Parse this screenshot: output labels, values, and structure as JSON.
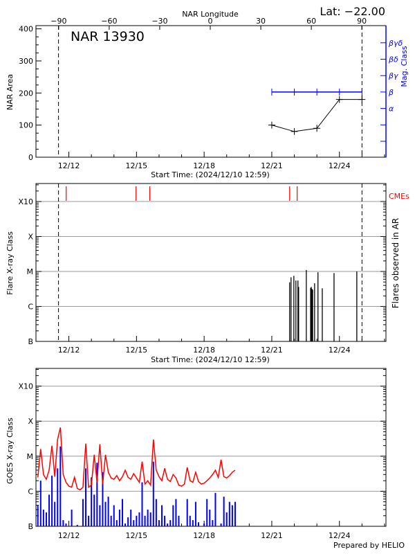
{
  "footer": "Prepared by HELIO",
  "colors": {
    "area": "#000000",
    "mag_class": "#0000ff",
    "cme": "#ff0000",
    "goes_long": "#ff0000",
    "goes_short": "#0000ff",
    "grid": "#999999"
  },
  "chart_data": [
    {
      "type": "line",
      "title": "NAR 13930",
      "corner_label": "Lat: −22.00",
      "top_axis_label": "NAR Longitude",
      "top_ticks": [
        "-90",
        "-60",
        "-30",
        "0",
        "30",
        "60",
        "90"
      ],
      "xlabel": "Start Time: (2024/12/10 12:59)",
      "x_ticks": [
        "12/12",
        "12/15",
        "12/18",
        "12/21",
        "12/24"
      ],
      "ylabel": "NAR Area",
      "ylim": [
        0,
        410
      ],
      "y_ticks": [
        "0",
        "100",
        "200",
        "300",
        "400"
      ],
      "y2label": "Mag. Class",
      "y2_ticks": [
        "",
        "",
        "α",
        "β",
        "βγ",
        "βδ",
        "βγδ"
      ],
      "limb_times": [
        "2024-12-11 13:00",
        "2024-12-25 00:00"
      ],
      "series": [
        {
          "x": [
            "2024-12-21 00:00",
            "2024-12-22 00:00",
            "2024-12-23 00:00",
            "2024-12-24 00:00",
            "2024-12-25 00:00"
          ],
          "area": [
            100,
            80,
            90,
            180,
            180
          ],
          "mag_class": [
            "β",
            "β",
            "β",
            "β",
            "β"
          ]
        }
      ]
    },
    {
      "type": "bar",
      "xlabel": "Start Time: (2024/12/10 12:59)",
      "x_ticks": [
        "12/12",
        "12/15",
        "12/18",
        "12/21",
        "12/24"
      ],
      "ylabel": "Flare X-ray Class",
      "y_ticks": [
        "B",
        "C",
        "M",
        "X",
        "X10"
      ],
      "y_scale": "log",
      "y2label": "Flares observed in AR",
      "cme_label": "CMEs",
      "grid": true,
      "cmes": [
        "2024-12-11 21:10",
        "2024-12-14 23:30",
        "2024-12-15 14:10",
        "2024-12-21 19:00",
        "2024-12-22 03:00"
      ],
      "flares": [
        {
          "t": "2024-12-21 19:00",
          "class": "C4.9"
        },
        {
          "t": "2024-12-21 20:30",
          "class": "C6.8"
        },
        {
          "t": "2024-12-21 23:30",
          "class": "C7.5"
        },
        {
          "t": "2024-12-22 01:40",
          "class": "C5.5"
        },
        {
          "t": "2024-12-22 03:50",
          "class": "C5.5"
        },
        {
          "t": "2024-12-22 04:35",
          "class": "C3.6"
        },
        {
          "t": "2024-12-22 12:45",
          "class": "M1.1"
        },
        {
          "t": "2024-12-22 17:20",
          "class": "C3.4"
        },
        {
          "t": "2024-12-22 18:00",
          "class": "C3.6"
        },
        {
          "t": "2024-12-22 18:40",
          "class": "C3.2"
        },
        {
          "t": "2024-12-22 19:30",
          "class": "C3.0"
        },
        {
          "t": "2024-12-22 21:35",
          "class": "C4.6"
        },
        {
          "t": "2024-12-23 01:10",
          "class": "C9.5"
        },
        {
          "t": "2024-12-23 05:45",
          "class": "C3.3"
        },
        {
          "t": "2024-12-23 18:15",
          "class": "C9.0"
        },
        {
          "t": "2024-12-24 18:30",
          "class": "M1.0"
        }
      ]
    },
    {
      "type": "line",
      "x_ticks": [
        "12/12",
        "12/15",
        "12/18",
        "12/21",
        "12/24"
      ],
      "ylabel": "GOES X-ray Class",
      "y_ticks": [
        "B",
        "C",
        "M",
        "X",
        "X10"
      ],
      "y_scale": "log",
      "grid": true,
      "x_start": "2024-12-10 15:00",
      "x_step_hours": 3,
      "series": [
        {
          "color": "#ff0000",
          "values": [
            2.5e-06,
            1.6e-05,
            3e-06,
            2.2e-06,
            4e-06,
            2e-05,
            2.6e-06,
            3e-05,
            6.6e-05,
            3e-06,
            1.8e-06,
            1.4e-06,
            1.3e-06,
            2.5e-06,
            1.2e-06,
            1.1e-06,
            1.3e-06,
            2.3e-05,
            1.3e-06,
            1.5e-06,
            1.1e-05,
            1.8e-06,
            2.2e-05,
            1.6e-06,
            1.1e-05,
            3.5e-06,
            2.4e-06,
            2.2e-06,
            2.8e-06,
            2e-06,
            2.6e-06,
            4e-06,
            2.5e-06,
            2.2e-06,
            3.2e-06,
            2.4e-06,
            1.8e-06,
            7e-06,
            1.6e-06,
            2e-06,
            1.5e-06,
            3e-05,
            4e-06,
            2.6e-06,
            2e-06,
            4.5e-06,
            2.2e-06,
            1.9e-06,
            3e-06,
            2.4e-06,
            1.5e-06,
            1.4e-06,
            1.6e-06,
            4.8e-06,
            2e-06,
            1.8e-06,
            3.5e-06,
            1.9e-06,
            1.6e-06,
            1.7e-06,
            2e-06,
            2.4e-06,
            3e-06,
            4e-06,
            2.5e-06,
            8e-06,
            2.6e-06,
            2.4e-06,
            2.8e-06,
            3.5e-06,
            4e-06
          ]
        },
        {
          "color": "#0000ff",
          "values": [
            4e-07,
            2e-06,
            3e-07,
            2.5e-07,
            8e-07,
            2.8e-06,
            5e-07,
            4.5e-06,
            1.9e-05,
            1.5e-07,
            1.2e-07,
            1e-07,
            3e-07,
            1e-07,
            1.1e-07,
            1e-07,
            6e-07,
            4.5e-06,
            2e-07,
            2.5e-06,
            8e-07,
            6.5e-06,
            4e-07,
            3.5e-06,
            5e-07,
            7e-07,
            2e-07,
            4e-07,
            1.5e-07,
            3e-07,
            6e-07,
            1.2e-07,
            1.8e-07,
            3e-07,
            1.5e-07,
            2e-07,
            2.5e-07,
            1.8e-06,
            2e-07,
            3e-07,
            2.5e-07,
            7e-06,
            6e-07,
            1.5e-07,
            4e-07,
            2e-07,
            1.2e-07,
            1.5e-07,
            4e-07,
            6e-07,
            2e-07,
            1e-07,
            1e-07,
            6e-07,
            2e-07,
            1.5e-07,
            5e-07,
            1.3e-07,
            1e-07,
            1.2e-07,
            6e-07,
            3e-07,
            1.5e-07,
            9e-07,
            1e-07,
            1.2e-07,
            7e-07,
            2.5e-07,
            5e-07,
            4e-07,
            5e-07
          ]
        }
      ]
    }
  ]
}
